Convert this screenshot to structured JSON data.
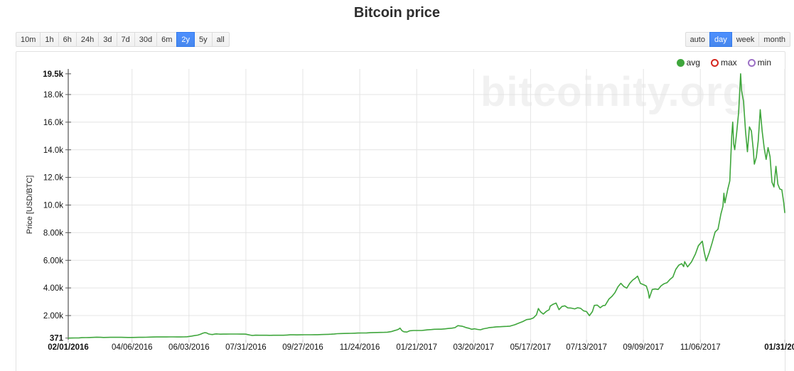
{
  "title": "Bitcoin price",
  "watermark": "bitcoinity.org",
  "toolbar": {
    "time_ranges": [
      "10m",
      "1h",
      "6h",
      "24h",
      "3d",
      "7d",
      "30d",
      "6m",
      "2y",
      "5y",
      "all"
    ],
    "time_range_selected": "2y",
    "resolutions": [
      "auto",
      "day",
      "week",
      "month"
    ],
    "resolution_selected": "day"
  },
  "legend": [
    {
      "label": "avg",
      "color": "#3fa63c",
      "style": "filled"
    },
    {
      "label": "max",
      "color": "#d5271f",
      "style": "ring"
    },
    {
      "label": "min",
      "color": "#9d71c6",
      "style": "ring"
    }
  ],
  "chart_data": {
    "type": "line",
    "title": "Bitcoin price",
    "ylabel": "Price [USD/BTC]",
    "series_name": "avg",
    "line_color": "#3fa63c",
    "grid": true,
    "x_axis_start_date": "02/01/2016",
    "x_axis_end_date": "01/31/2018",
    "x_domain_days": [
      0,
      730
    ],
    "y_domain": [
      371,
      19500
    ],
    "y_ticks": [
      {
        "v": 371,
        "label": "371",
        "bold": true
      },
      {
        "v": 2000,
        "label": "2.00k"
      },
      {
        "v": 4000,
        "label": "4.00k"
      },
      {
        "v": 6000,
        "label": "6.00k"
      },
      {
        "v": 8000,
        "label": "8.00k"
      },
      {
        "v": 10000,
        "label": "10.0k"
      },
      {
        "v": 12000,
        "label": "12.0k"
      },
      {
        "v": 14000,
        "label": "14.0k"
      },
      {
        "v": 16000,
        "label": "16.0k"
      },
      {
        "v": 18000,
        "label": "18.0k"
      },
      {
        "v": 19500,
        "label": "19.5k",
        "bold": true
      }
    ],
    "x_ticks": [
      {
        "d": 0,
        "label": "02/01/2016",
        "bold": true
      },
      {
        "d": 65,
        "label": "04/06/2016"
      },
      {
        "d": 123,
        "label": "06/03/2016"
      },
      {
        "d": 181,
        "label": "07/31/2016"
      },
      {
        "d": 239,
        "label": "09/27/2016"
      },
      {
        "d": 297,
        "label": "11/24/2016"
      },
      {
        "d": 355,
        "label": "01/21/2017"
      },
      {
        "d": 413,
        "label": "03/20/2017"
      },
      {
        "d": 471,
        "label": "05/17/2017"
      },
      {
        "d": 528,
        "label": "07/13/2017"
      },
      {
        "d": 586,
        "label": "09/09/2017"
      },
      {
        "d": 644,
        "label": "11/06/2017"
      },
      {
        "d": 730,
        "label": "01/31/2018",
        "bold": true
      }
    ],
    "points_day_price": [
      [
        0,
        371
      ],
      [
        4,
        373
      ],
      [
        7,
        378
      ],
      [
        11,
        384
      ],
      [
        14,
        398
      ],
      [
        18,
        406
      ],
      [
        21,
        412
      ],
      [
        25,
        422
      ],
      [
        29,
        436
      ],
      [
        33,
        426
      ],
      [
        36,
        418
      ],
      [
        40,
        421
      ],
      [
        43,
        424
      ],
      [
        47,
        427
      ],
      [
        50,
        429
      ],
      [
        54,
        424
      ],
      [
        57,
        420
      ],
      [
        61,
        417
      ],
      [
        65,
        418
      ],
      [
        69,
        421
      ],
      [
        72,
        424
      ],
      [
        76,
        427
      ],
      [
        79,
        431
      ],
      [
        83,
        439
      ],
      [
        86,
        447
      ],
      [
        90,
        451
      ],
      [
        93,
        453
      ],
      [
        97,
        455
      ],
      [
        100,
        454
      ],
      [
        104,
        457
      ],
      [
        107,
        458
      ],
      [
        111,
        453
      ],
      [
        114,
        450
      ],
      [
        118,
        455
      ],
      [
        121,
        465
      ],
      [
        125,
        505
      ],
      [
        128,
        546
      ],
      [
        132,
        586
      ],
      [
        135,
        655
      ],
      [
        137,
        718
      ],
      [
        139,
        758
      ],
      [
        141,
        744
      ],
      [
        143,
        668
      ],
      [
        145,
        640
      ],
      [
        147,
        628
      ],
      [
        149,
        655
      ],
      [
        151,
        671
      ],
      [
        153,
        662
      ],
      [
        155,
        652
      ],
      [
        158,
        655
      ],
      [
        161,
        659
      ],
      [
        165,
        664
      ],
      [
        169,
        662
      ],
      [
        172,
        660
      ],
      [
        176,
        658
      ],
      [
        179,
        656
      ],
      [
        181,
        650
      ],
      [
        183,
        622
      ],
      [
        185,
        590
      ],
      [
        187,
        566
      ],
      [
        189,
        572
      ],
      [
        191,
        578
      ],
      [
        195,
        576
      ],
      [
        198,
        574
      ],
      [
        202,
        573
      ],
      [
        205,
        572
      ],
      [
        209,
        573
      ],
      [
        212,
        574
      ],
      [
        216,
        576
      ],
      [
        219,
        577
      ],
      [
        223,
        592
      ],
      [
        226,
        607
      ],
      [
        230,
        604
      ],
      [
        233,
        602
      ],
      [
        237,
        606
      ],
      [
        240,
        609
      ],
      [
        244,
        611
      ],
      [
        247,
        612
      ],
      [
        251,
        614
      ],
      [
        254,
        616
      ],
      [
        258,
        624
      ],
      [
        261,
        632
      ],
      [
        265,
        642
      ],
      [
        268,
        652
      ],
      [
        271,
        668
      ],
      [
        274,
        688
      ],
      [
        278,
        698
      ],
      [
        281,
        706
      ],
      [
        285,
        710
      ],
      [
        288,
        714
      ],
      [
        292,
        722
      ],
      [
        295,
        732
      ],
      [
        299,
        738
      ],
      [
        304,
        744
      ],
      [
        308,
        758
      ],
      [
        311,
        770
      ],
      [
        315,
        775
      ],
      [
        318,
        780
      ],
      [
        322,
        788
      ],
      [
        325,
        798
      ],
      [
        329,
        838
      ],
      [
        332,
        906
      ],
      [
        335,
        966
      ],
      [
        337,
        1026
      ],
      [
        338,
        1096
      ],
      [
        340,
        906
      ],
      [
        342,
        826
      ],
      [
        345,
        808
      ],
      [
        348,
        898
      ],
      [
        352,
        922
      ],
      [
        356,
        918
      ],
      [
        360,
        922
      ],
      [
        363,
        940
      ],
      [
        366,
        968
      ],
      [
        370,
        988
      ],
      [
        373,
        1008
      ],
      [
        377,
        1010
      ],
      [
        380,
        1012
      ],
      [
        384,
        1036
      ],
      [
        387,
        1062
      ],
      [
        391,
        1090
      ],
      [
        394,
        1126
      ],
      [
        397,
        1268
      ],
      [
        399,
        1248
      ],
      [
        401,
        1232
      ],
      [
        403,
        1186
      ],
      [
        405,
        1136
      ],
      [
        408,
        1086
      ],
      [
        411,
        1006
      ],
      [
        414,
        1043
      ],
      [
        417,
        999
      ],
      [
        420,
        969
      ],
      [
        423,
        1043
      ],
      [
        427,
        1093
      ],
      [
        429,
        1133
      ],
      [
        433,
        1158
      ],
      [
        436,
        1183
      ],
      [
        440,
        1194
      ],
      [
        443,
        1206
      ],
      [
        447,
        1220
      ],
      [
        450,
        1233
      ],
      [
        455,
        1336
      ],
      [
        459,
        1453
      ],
      [
        463,
        1563
      ],
      [
        467,
        1706
      ],
      [
        471,
        1746
      ],
      [
        474,
        1836
      ],
      [
        477,
        2056
      ],
      [
        479,
        2510
      ],
      [
        481,
        2281
      ],
      [
        484,
        2106
      ],
      [
        487,
        2306
      ],
      [
        490,
        2426
      ],
      [
        491,
        2686
      ],
      [
        494,
        2816
      ],
      [
        497,
        2906
      ],
      [
        500,
        2426
      ],
      [
        503,
        2656
      ],
      [
        506,
        2706
      ],
      [
        509,
        2556
      ],
      [
        512,
        2546
      ],
      [
        516,
        2486
      ],
      [
        519,
        2566
      ],
      [
        522,
        2526
      ],
      [
        525,
        2346
      ],
      [
        528,
        2286
      ],
      [
        531,
        1996
      ],
      [
        534,
        2286
      ],
      [
        536,
        2736
      ],
      [
        539,
        2756
      ],
      [
        542,
        2566
      ],
      [
        545,
        2726
      ],
      [
        547,
        2736
      ],
      [
        551,
        3206
      ],
      [
        554,
        3396
      ],
      [
        557,
        3656
      ],
      [
        560,
        4076
      ],
      [
        563,
        4336
      ],
      [
        566,
        4106
      ],
      [
        569,
        3986
      ],
      [
        572,
        4326
      ],
      [
        575,
        4566
      ],
      [
        578,
        4716
      ],
      [
        580,
        4856
      ],
      [
        583,
        4326
      ],
      [
        586,
        4236
      ],
      [
        589,
        4136
      ],
      [
        591,
        3686
      ],
      [
        592,
        3256
      ],
      [
        595,
        3886
      ],
      [
        598,
        3926
      ],
      [
        601,
        3886
      ],
      [
        604,
        4156
      ],
      [
        607,
        4306
      ],
      [
        610,
        4376
      ],
      [
        613,
        4606
      ],
      [
        616,
        4786
      ],
      [
        619,
        5346
      ],
      [
        622,
        5646
      ],
      [
        625,
        5756
      ],
      [
        627,
        5546
      ],
      [
        628,
        5906
      ],
      [
        631,
        5526
      ],
      [
        635,
        5886
      ],
      [
        639,
        6456
      ],
      [
        642,
        7056
      ],
      [
        646,
        7386
      ],
      [
        648,
        6566
      ],
      [
        650,
        5956
      ],
      [
        653,
        6556
      ],
      [
        656,
        7256
      ],
      [
        659,
        8046
      ],
      [
        662,
        8256
      ],
      [
        665,
        9356
      ],
      [
        667,
        9906
      ],
      [
        668,
        10856
      ],
      [
        669,
        10156
      ],
      [
        672,
        11156
      ],
      [
        674,
        11756
      ],
      [
        676,
        15006
      ],
      [
        677,
        16006
      ],
      [
        678,
        14406
      ],
      [
        679,
        14006
      ],
      [
        681,
        15206
      ],
      [
        683,
        16706
      ],
      [
        685,
        19500
      ],
      [
        686,
        18306
      ],
      [
        688,
        17506
      ],
      [
        690,
        15356
      ],
      [
        692,
        13856
      ],
      [
        694,
        15656
      ],
      [
        696,
        15356
      ],
      [
        698,
        13956
      ],
      [
        699,
        12956
      ],
      [
        701,
        13456
      ],
      [
        703,
        14656
      ],
      [
        705,
        16906
      ],
      [
        707,
        15356
      ],
      [
        709,
        14156
      ],
      [
        711,
        13306
      ],
      [
        713,
        14156
      ],
      [
        715,
        13506
      ],
      [
        717,
        11656
      ],
      [
        719,
        11306
      ],
      [
        721,
        12806
      ],
      [
        723,
        11506
      ],
      [
        725,
        11156
      ],
      [
        727,
        11106
      ],
      [
        729,
        10156
      ],
      [
        730,
        9456
      ]
    ]
  }
}
